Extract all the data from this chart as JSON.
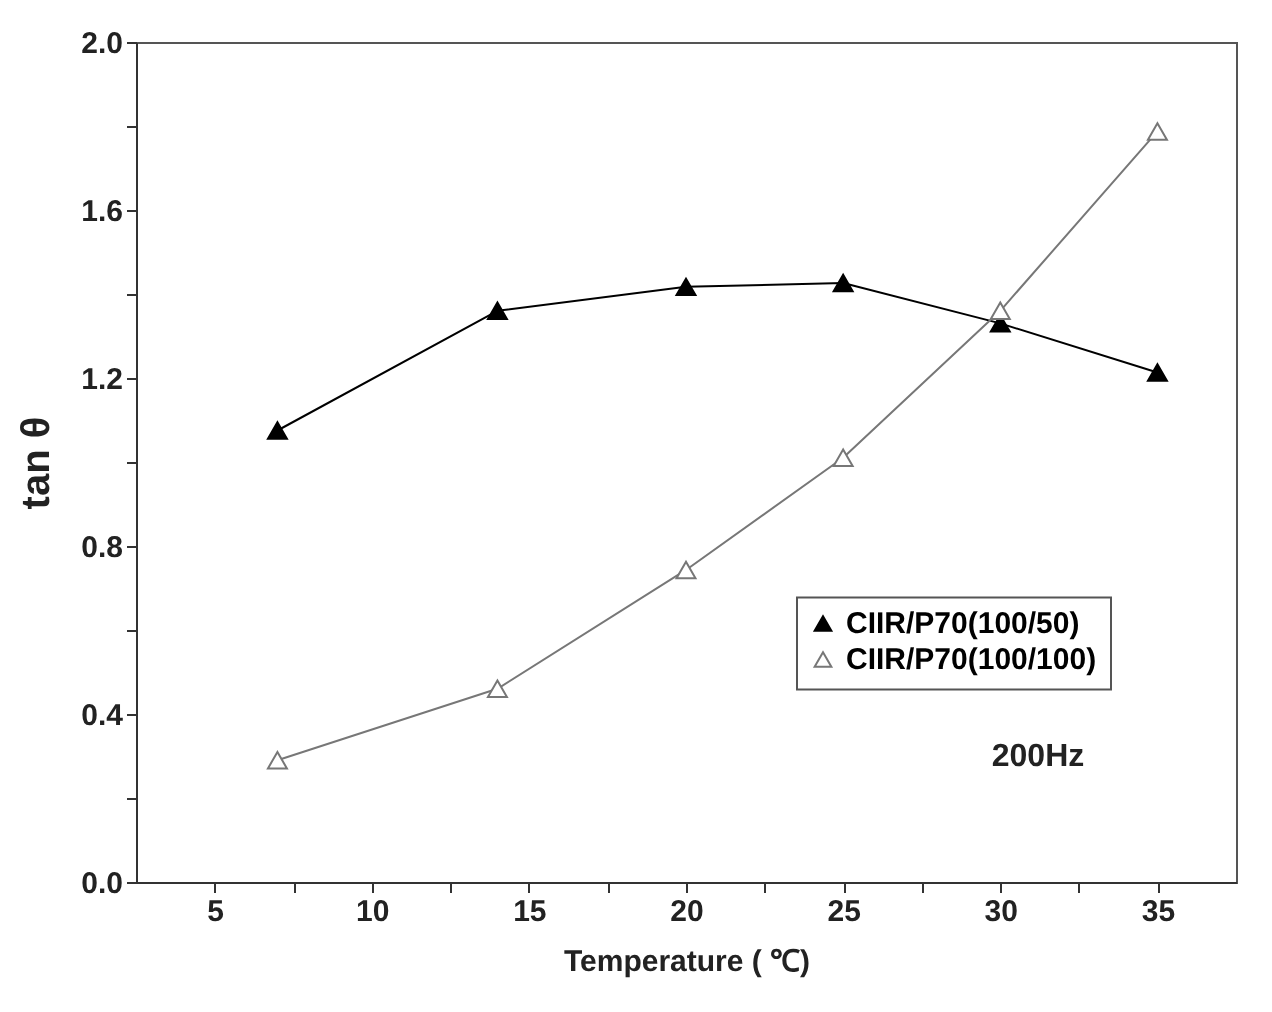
{
  "chart_data": {
    "type": "line",
    "xlabel": "Temperature ( ℃)",
    "ylabel": "tan θ",
    "annotations": [
      "200Hz"
    ],
    "x": [
      7,
      14,
      20,
      25,
      30,
      35
    ],
    "series": [
      {
        "name": "CIIR/P70(100/50)",
        "color": "#000000",
        "values": [
          1.075,
          1.36,
          1.417,
          1.426,
          1.33,
          1.213
        ]
      },
      {
        "name": "CIIR/P70(100/100)",
        "color": "#777777",
        "values": [
          0.29,
          0.46,
          0.743,
          1.01,
          1.36,
          1.787
        ]
      }
    ],
    "xlim": [
      2.5,
      37.5
    ],
    "xticks": [
      5,
      {
        "value": 7.5,
        "label": null
      },
      10,
      {
        "value": 12.5,
        "label": null
      },
      15,
      {
        "value": 17.5,
        "label": null
      },
      20,
      {
        "value": 22.5,
        "label": null
      },
      25,
      {
        "value": 27.5,
        "label": null
      },
      30,
      {
        "value": 32.5,
        "label": null
      },
      35
    ],
    "ylim": [
      0,
      2
    ],
    "yticks": [
      {
        "value": 0,
        "label": "0.0"
      },
      {
        "value": 0.2,
        "label": null
      },
      {
        "value": 0.4,
        "label": "0.4"
      },
      {
        "value": 0.6,
        "label": null
      },
      {
        "value": 0.8,
        "label": "0.8"
      },
      {
        "value": 1,
        "label": null
      },
      {
        "value": 1.2,
        "label": "1.2"
      },
      {
        "value": 1.4,
        "label": null
      },
      {
        "value": 1.6,
        "label": "1.6"
      },
      {
        "value": 1.8,
        "label": null
      },
      {
        "value": 2,
        "label": "2.0"
      }
    ],
    "grid": false,
    "legend": "bottom right",
    "marker": "triangle",
    "line_style": "solid"
  }
}
